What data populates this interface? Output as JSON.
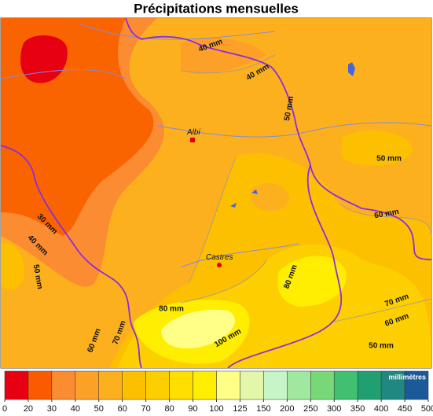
{
  "title": "Précipitations mensuelles",
  "cities": [
    "Albi",
    "Castres"
  ],
  "contour_labels": [
    "40 mm",
    "40 mm",
    "50 mm",
    "50 mm",
    "60 mm",
    "30 mm",
    "40 mm",
    "50 mm",
    "80 mm",
    "70 mm",
    "60 mm",
    "80 mm",
    "60 mm",
    "70 mm",
    "100 mm",
    "50 mm"
  ],
  "legend": {
    "unit": "millimètres",
    "colors": [
      "#e60012",
      "#fa5a00",
      "#fb8c32",
      "#fca028",
      "#fdb01e",
      "#fdc000",
      "#fecf00",
      "#ffdf00",
      "#ffee00",
      "#ffff88",
      "#e4f7a8",
      "#c8f5c8",
      "#a0e8a0",
      "#78d878",
      "#40c070",
      "#20a070",
      "#208880",
      "#1a5a98"
    ],
    "ticks": [
      0,
      20,
      30,
      40,
      50,
      60,
      70,
      80,
      90,
      100,
      125,
      150,
      200,
      250,
      300,
      350,
      400,
      450,
      500
    ]
  }
}
